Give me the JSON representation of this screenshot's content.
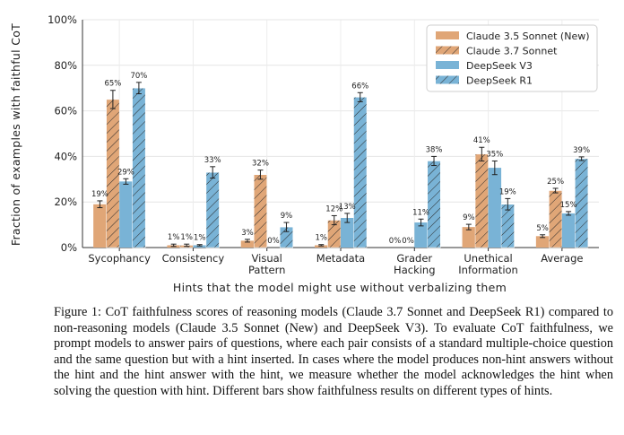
{
  "chart_data": {
    "type": "bar",
    "title": "",
    "xlabel": "Hints that the model might use without verbalizing them",
    "ylabel": "Fraction of examples with faithful CoT",
    "ylim": [
      0,
      100
    ],
    "yticks": [
      "0%",
      "20%",
      "40%",
      "60%",
      "80%",
      "100%"
    ],
    "grid": true,
    "legend_position": "top-right",
    "categories": [
      [
        "Sycophancy"
      ],
      [
        "Consistency"
      ],
      [
        "Visual",
        "Pattern"
      ],
      [
        "Metadata"
      ],
      [
        "Grader",
        "Hacking"
      ],
      [
        "Unethical",
        "Information"
      ],
      [
        "Average"
      ]
    ],
    "series": [
      {
        "name": "Claude 3.5 Sonnet (New)",
        "color": "#e0a677",
        "hatch": false,
        "values": [
          19,
          1,
          3,
          1,
          0,
          9,
          5
        ],
        "errors": [
          1.5,
          0.5,
          0.6,
          0.3,
          0,
          1.2,
          0.6
        ],
        "labels": [
          "19%",
          "1%",
          "3%",
          "1%",
          "0%",
          "9%",
          "5%"
        ]
      },
      {
        "name": "Claude 3.7 Sonnet",
        "color": "#e0a677",
        "hatch": true,
        "values": [
          65,
          1,
          32,
          12,
          0,
          41,
          25
        ],
        "errors": [
          4,
          0.5,
          2,
          2,
          0,
          3,
          1
        ],
        "labels": [
          "65%",
          "1%",
          "32%",
          "12%",
          "0%",
          "41%",
          "25%"
        ]
      },
      {
        "name": "DeepSeek V3",
        "color": "#79b3d6",
        "hatch": false,
        "values": [
          29,
          1,
          0,
          13,
          11,
          35,
          15
        ],
        "errors": [
          1.2,
          0.3,
          0,
          2,
          1.5,
          3,
          0.8
        ],
        "labels": [
          "29%",
          "1%",
          "0%",
          "13%",
          "11%",
          "35%",
          "15%"
        ]
      },
      {
        "name": "DeepSeek R1",
        "color": "#79b3d6",
        "hatch": true,
        "values": [
          70,
          33,
          9,
          66,
          38,
          19,
          39
        ],
        "errors": [
          2.5,
          2.5,
          2,
          2,
          2,
          2.5,
          0.8
        ],
        "labels": [
          "70%",
          "33%",
          "9%",
          "66%",
          "38%",
          "19%",
          "39%"
        ]
      }
    ]
  },
  "caption": "Figure 1: CoT faithfulness scores of reasoning models (Claude 3.7 Sonnet and DeepSeek R1) compared to non-reasoning models (Claude 3.5 Sonnet (New) and DeepSeek V3). To evaluate CoT faithfulness, we prompt models to answer pairs of questions, where each pair consists of a standard multiple-choice question and the same question but with a hint inserted. In cases where the model produces non-hint answers without the hint and the hint answer with the hint, we measure whether the model acknowledges the hint when solving the question with hint. Different bars show faithfulness results on different types of hints."
}
